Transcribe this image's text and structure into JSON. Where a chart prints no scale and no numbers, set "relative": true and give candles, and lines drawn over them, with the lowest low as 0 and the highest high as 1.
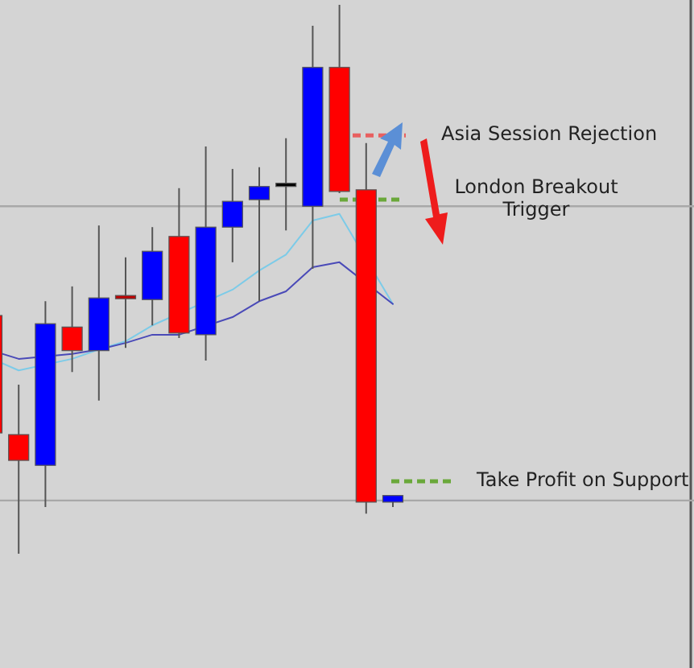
{
  "chart_data": {
    "type": "candlestick",
    "relative": true,
    "categories": [
      null,
      null,
      null,
      null,
      null,
      null,
      null,
      null,
      null,
      null,
      null,
      null,
      null,
      null,
      null,
      null
    ],
    "ohlc": [
      [
        0.434,
        0.434,
        0.22,
        0.22
      ],
      [
        0.217,
        0.308,
        0,
        0.17
      ],
      [
        0.161,
        0.46,
        0.085,
        0.419
      ],
      [
        0.413,
        0.487,
        0.331,
        0.37
      ],
      [
        0.37,
        0.598,
        0.279,
        0.466
      ],
      [
        0.469,
        0.54,
        0.375,
        0.466
      ],
      [
        0.463,
        0.595,
        0.416,
        0.551
      ],
      [
        0.578,
        0.666,
        0.393,
        0.402
      ],
      [
        0.399,
        0.742,
        0.352,
        0.595
      ],
      [
        0.595,
        0.701,
        0.531,
        0.642
      ],
      [
        0.645,
        0.704,
        0.46,
        0.669
      ],
      [
        0.672,
        0.757,
        0.589,
        0.672
      ],
      [
        0.633,
        0.962,
        0.519,
        0.886
      ],
      [
        0.886,
        1,
        0.657,
        0.66
      ],
      [
        0.663,
        0.748,
        0.073,
        0.094
      ],
      [
        0.094,
        0.106,
        0.085,
        0.106
      ]
    ],
    "colors": [
      "#ff0000",
      "#ff0000",
      "#0000ff",
      "#ff0000",
      "#0000ff",
      "#c00000",
      "#0000ff",
      "#ff0000",
      "#0000ff",
      "#0000ff",
      "#0000ff",
      "#000000",
      "#0000ff",
      "#ff0000",
      "#ff0000",
      "#0000ff"
    ],
    "series": [
      {
        "type": "line",
        "color": "#7ccbe8",
        "values": [
          0.355,
          0.334,
          null,
          0.355,
          0.372,
          0.387,
          0.416,
          null,
          null,
          0.481,
          0.516,
          0.545,
          0.607,
          0.619,
          null,
          0.455
        ]
      },
      {
        "type": "line",
        "color": "#4a4ab8",
        "values": [
          0.37,
          0.355,
          null,
          0.364,
          0.372,
          0.384,
          0.399,
          0.399,
          null,
          0.431,
          0.46,
          0.478,
          0.522,
          0.531,
          null,
          0.455
        ]
      }
    ],
    "ref_lines": [
      {
        "axis": "y",
        "value": 0.633,
        "color": "#a8a8a8",
        "line_style": "solid"
      },
      {
        "axis": "y",
        "value": 0.097,
        "color": "#a8a8a8",
        "line_style": "solid"
      },
      {
        "axis": "y",
        "value": 0.762,
        "label": "Asia Session Rejection",
        "color": "#e86060",
        "line_style": "dashed"
      },
      {
        "axis": "y",
        "value": 0.645,
        "label": "London Breakout Trigger",
        "color": "#6aa83a",
        "line_style": "dashed"
      },
      {
        "axis": "y",
        "value": 0.132,
        "label": "Take Profit on Support",
        "color": "#6aa83a",
        "line_style": "dashed"
      }
    ]
  }
}
